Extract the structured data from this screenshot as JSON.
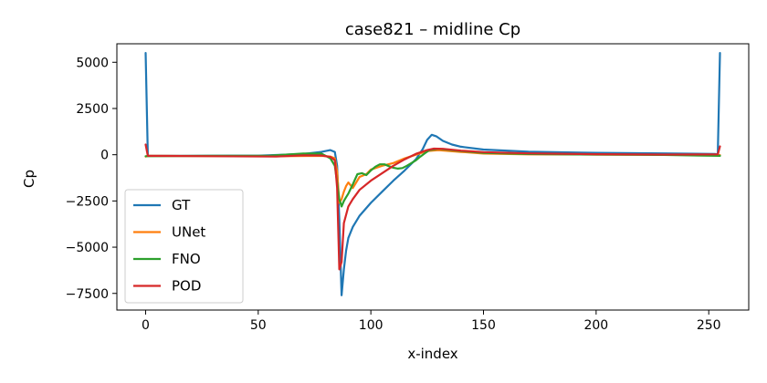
{
  "chart_data": {
    "type": "line",
    "title": "case821 – midline Cp",
    "xlabel": "x-index",
    "ylabel": "Cp",
    "xlim": [
      -12.75,
      267.75
    ],
    "ylim": [
      -8400,
      6000
    ],
    "xticks": [
      0,
      50,
      100,
      150,
      200,
      250
    ],
    "xtick_labels": [
      "0",
      "50",
      "100",
      "150",
      "200",
      "250"
    ],
    "yticks": [
      -7500,
      -5000,
      -2500,
      0,
      2500,
      5000
    ],
    "ytick_labels": [
      "−7500",
      "−5000",
      "−2500",
      "0",
      "2500",
      "5000"
    ],
    "legend_position": "lower-left",
    "series": [
      {
        "name": "GT",
        "color": "#1f77b4",
        "points": [
          [
            0,
            5500
          ],
          [
            1,
            -50
          ],
          [
            20,
            -60
          ],
          [
            50,
            -50
          ],
          [
            70,
            40
          ],
          [
            78,
            150
          ],
          [
            82,
            250
          ],
          [
            84,
            150
          ],
          [
            85,
            -600
          ],
          [
            86,
            -3500
          ],
          [
            87,
            -7600
          ],
          [
            88,
            -6200
          ],
          [
            89,
            -5200
          ],
          [
            90,
            -4500
          ],
          [
            92,
            -3900
          ],
          [
            95,
            -3300
          ],
          [
            100,
            -2600
          ],
          [
            105,
            -2000
          ],
          [
            110,
            -1400
          ],
          [
            115,
            -850
          ],
          [
            120,
            -250
          ],
          [
            123,
            300
          ],
          [
            125,
            800
          ],
          [
            127,
            1080
          ],
          [
            129,
            1000
          ],
          [
            132,
            750
          ],
          [
            136,
            550
          ],
          [
            140,
            430
          ],
          [
            150,
            280
          ],
          [
            170,
            160
          ],
          [
            200,
            100
          ],
          [
            230,
            70
          ],
          [
            253,
            40
          ],
          [
            254,
            20
          ],
          [
            255,
            5500
          ]
        ]
      },
      {
        "name": "UNet",
        "color": "#ff7f0e",
        "points": [
          [
            0,
            -100
          ],
          [
            1,
            -60
          ],
          [
            30,
            -70
          ],
          [
            60,
            -80
          ],
          [
            78,
            -60
          ],
          [
            82,
            -100
          ],
          [
            84,
            -200
          ],
          [
            85,
            -900
          ],
          [
            86,
            -2600
          ],
          [
            87,
            -2400
          ],
          [
            88,
            -2000
          ],
          [
            89,
            -1700
          ],
          [
            90,
            -1500
          ],
          [
            92,
            -1800
          ],
          [
            95,
            -1200
          ],
          [
            98,
            -1050
          ],
          [
            100,
            -800
          ],
          [
            105,
            -600
          ],
          [
            110,
            -450
          ],
          [
            115,
            -200
          ],
          [
            120,
            0
          ],
          [
            125,
            200
          ],
          [
            130,
            250
          ],
          [
            140,
            150
          ],
          [
            150,
            60
          ],
          [
            170,
            20
          ],
          [
            200,
            10
          ],
          [
            230,
            0
          ],
          [
            255,
            -20
          ]
        ]
      },
      {
        "name": "FNO",
        "color": "#2ca02c",
        "points": [
          [
            0,
            -80
          ],
          [
            1,
            -80
          ],
          [
            30,
            -60
          ],
          [
            55,
            -50
          ],
          [
            70,
            60
          ],
          [
            78,
            60
          ],
          [
            82,
            -200
          ],
          [
            84,
            -600
          ],
          [
            85,
            -1500
          ],
          [
            86,
            -2400
          ],
          [
            87,
            -2800
          ],
          [
            88,
            -2500
          ],
          [
            89,
            -2300
          ],
          [
            90,
            -2100
          ],
          [
            92,
            -1600
          ],
          [
            94,
            -1050
          ],
          [
            96,
            -1000
          ],
          [
            98,
            -1100
          ],
          [
            100,
            -850
          ],
          [
            102,
            -650
          ],
          [
            104,
            -520
          ],
          [
            106,
            -520
          ],
          [
            108,
            -620
          ],
          [
            110,
            -700
          ],
          [
            112,
            -750
          ],
          [
            114,
            -720
          ],
          [
            116,
            -600
          ],
          [
            118,
            -450
          ],
          [
            120,
            -300
          ],
          [
            122,
            -100
          ],
          [
            124,
            80
          ],
          [
            126,
            250
          ],
          [
            130,
            320
          ],
          [
            140,
            200
          ],
          [
            150,
            100
          ],
          [
            170,
            40
          ],
          [
            200,
            10
          ],
          [
            230,
            -10
          ],
          [
            255,
            -60
          ]
        ]
      },
      {
        "name": "POD",
        "color": "#d62728",
        "points": [
          [
            0,
            550
          ],
          [
            1,
            -60
          ],
          [
            30,
            -80
          ],
          [
            58,
            -100
          ],
          [
            70,
            -30
          ],
          [
            78,
            -40
          ],
          [
            82,
            -120
          ],
          [
            84,
            -300
          ],
          [
            85,
            -1800
          ],
          [
            86,
            -6200
          ],
          [
            87,
            -5800
          ],
          [
            88,
            -3700
          ],
          [
            90,
            -2800
          ],
          [
            92,
            -2400
          ],
          [
            95,
            -1900
          ],
          [
            100,
            -1400
          ],
          [
            105,
            -1000
          ],
          [
            110,
            -600
          ],
          [
            115,
            -250
          ],
          [
            120,
            50
          ],
          [
            125,
            250
          ],
          [
            128,
            330
          ],
          [
            132,
            320
          ],
          [
            140,
            220
          ],
          [
            150,
            140
          ],
          [
            170,
            70
          ],
          [
            200,
            30
          ],
          [
            230,
            10
          ],
          [
            254,
            20
          ],
          [
            255,
            450
          ]
        ]
      }
    ]
  }
}
